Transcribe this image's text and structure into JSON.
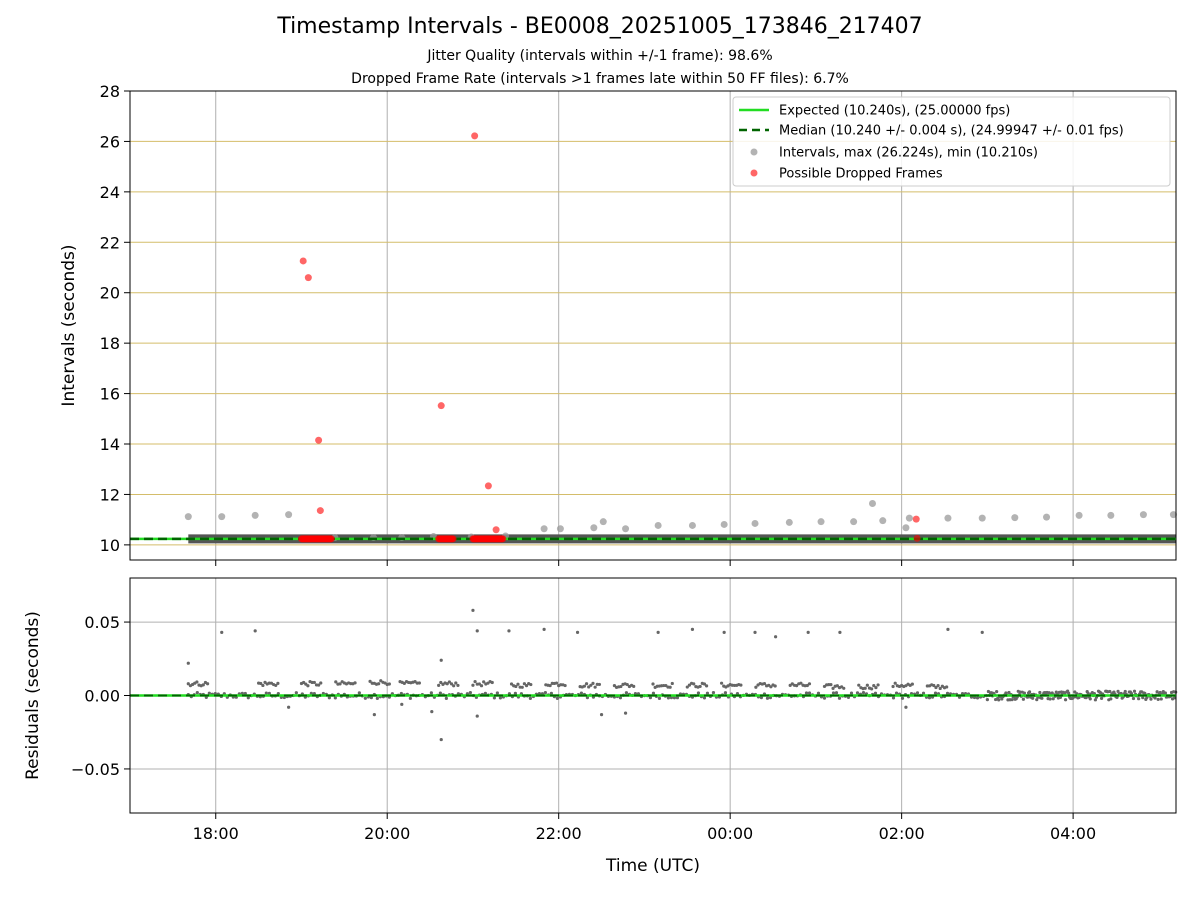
{
  "chart_data": [
    {
      "type": "scatter",
      "panel": "intervals",
      "title": "Timestamp Intervals - BE0008_20251005_173846_217407",
      "subtitle_lines": [
        "Jitter Quality (intervals within +/-1 frame): 98.6%",
        "Dropped Frame Rate (intervals >1 frames late within 50 FF files): 6.7%"
      ],
      "xlabel": "",
      "ylabel": "Intervals (seconds)",
      "xlim_hours": [
        17.0,
        29.2
      ],
      "ylim": [
        9.4,
        28
      ],
      "yticks": [
        10,
        12,
        14,
        16,
        18,
        20,
        22,
        24,
        26,
        28
      ],
      "ytick_labels": [
        "10",
        "12",
        "14",
        "16",
        "18",
        "20",
        "22",
        "24",
        "26",
        "28"
      ],
      "xticks_hours": [
        18,
        20,
        22,
        24,
        26,
        28
      ],
      "grid": true,
      "legend_position": "top-right",
      "legend": [
        "Expected (10.240s), (25.00000 fps)",
        "Median (10.240 +/- 0.004 s), (24.99947 +/- 0.01 fps)",
        "Intervals, max (26.224s), min (10.210s)",
        "Possible Dropped Frames"
      ],
      "expected_interval": 10.24,
      "median_interval": 10.24,
      "series": [
        {
          "name": "Intervals",
          "color": "#999999",
          "points": [
            [
              17.68,
              11.12
            ],
            [
              18.07,
              11.12
            ],
            [
              18.46,
              11.17
            ],
            [
              18.85,
              11.2
            ],
            [
              19.39,
              10.29
            ],
            [
              19.84,
              10.29
            ],
            [
              20.17,
              10.29
            ],
            [
              20.54,
              10.33
            ],
            [
              20.98,
              10.31
            ],
            [
              21.38,
              10.35
            ],
            [
              21.83,
              10.64
            ],
            [
              22.02,
              10.64
            ],
            [
              22.41,
              10.68
            ],
            [
              22.52,
              10.92
            ],
            [
              22.78,
              10.64
            ],
            [
              23.16,
              10.77
            ],
            [
              23.56,
              10.77
            ],
            [
              23.93,
              10.81
            ],
            [
              24.29,
              10.85
            ],
            [
              24.69,
              10.89
            ],
            [
              25.06,
              10.92
            ],
            [
              25.44,
              10.92
            ],
            [
              25.66,
              11.64
            ],
            [
              25.78,
              10.96
            ],
            [
              26.05,
              10.68
            ],
            [
              26.09,
              11.06
            ],
            [
              26.54,
              11.06
            ],
            [
              26.94,
              11.06
            ],
            [
              27.32,
              11.08
            ],
            [
              27.69,
              11.1
            ],
            [
              28.07,
              11.17
            ],
            [
              28.44,
              11.17
            ],
            [
              28.82,
              11.2
            ],
            [
              29.17,
              11.2
            ]
          ],
          "dense_band": [
            17.68,
            29.2,
            10.24
          ]
        },
        {
          "name": "Possible Dropped Frames",
          "color": "#ff0000",
          "points": [
            [
              19.02,
              21.26
            ],
            [
              19.08,
              20.6
            ],
            [
              19.2,
              14.15
            ],
            [
              19.22,
              11.36
            ],
            [
              20.63,
              15.52
            ],
            [
              21.02,
              26.22
            ],
            [
              21.18,
              12.34
            ],
            [
              21.27,
              10.6
            ],
            [
              26.17,
              11.02
            ],
            [
              26.18,
              10.26
            ]
          ],
          "clusters": [
            [
              19.0,
              19.35,
              10.24
            ],
            [
              20.6,
              20.77,
              10.24
            ],
            [
              21.0,
              21.35,
              10.24
            ]
          ]
        }
      ]
    },
    {
      "type": "scatter",
      "panel": "residuals",
      "xlabel": "Time (UTC)",
      "ylabel": "Residuals (seconds)",
      "xlim_hours": [
        17.0,
        29.2
      ],
      "ylim": [
        -0.08,
        0.08
      ],
      "yticks": [
        0.05,
        0.0,
        -0.05
      ],
      "ytick_labels": [
        "0.05",
        "0.00",
        "−0.05"
      ],
      "xticks_hours": [
        18,
        20,
        22,
        24,
        26,
        28
      ],
      "xtick_labels": [
        "18:00",
        "20:00",
        "22:00",
        "00:00",
        "02:00",
        "04:00"
      ],
      "grid": true,
      "series": [
        {
          "name": "Residuals",
          "color": "#666666",
          "outliers": [
            [
              17.68,
              0.022
            ],
            [
              18.07,
              0.043
            ],
            [
              18.46,
              0.044
            ],
            [
              20.63,
              0.024
            ],
            [
              20.63,
              -0.03
            ],
            [
              21.0,
              0.058
            ],
            [
              21.05,
              0.044
            ],
            [
              21.42,
              0.044
            ],
            [
              21.83,
              0.045
            ],
            [
              22.22,
              0.043
            ],
            [
              23.16,
              0.043
            ],
            [
              23.56,
              0.045
            ],
            [
              23.93,
              0.043
            ],
            [
              24.29,
              0.043
            ],
            [
              24.53,
              0.04
            ],
            [
              24.91,
              0.043
            ],
            [
              25.28,
              0.043
            ],
            [
              26.54,
              0.045
            ],
            [
              26.94,
              0.043
            ],
            [
              19.85,
              -0.013
            ],
            [
              20.52,
              -0.011
            ],
            [
              21.05,
              -0.014
            ],
            [
              22.5,
              -0.013
            ],
            [
              22.78,
              -0.012
            ],
            [
              26.05,
              -0.008
            ],
            [
              20.17,
              -0.006
            ],
            [
              18.85,
              -0.008
            ]
          ],
          "segments": [
            [
              17.68,
              0.008
            ],
            [
              18.5,
              0.008
            ],
            [
              19.0,
              0.008
            ],
            [
              19.4,
              0.008
            ],
            [
              19.8,
              0.009
            ],
            [
              20.15,
              0.008
            ],
            [
              20.6,
              0.008
            ],
            [
              21.0,
              0.008
            ],
            [
              21.45,
              0.007
            ],
            [
              21.85,
              0.008
            ],
            [
              22.25,
              0.007
            ],
            [
              22.65,
              0.007
            ],
            [
              23.1,
              0.007
            ],
            [
              23.5,
              0.007
            ],
            [
              23.9,
              0.007
            ],
            [
              24.3,
              0.007
            ],
            [
              24.7,
              0.007
            ],
            [
              25.1,
              0.006
            ],
            [
              25.5,
              0.006
            ],
            [
              25.9,
              0.007
            ],
            [
              26.3,
              0.006
            ]
          ],
          "noise_band": [
            27.0,
            29.2,
            0.003
          ]
        }
      ]
    }
  ]
}
